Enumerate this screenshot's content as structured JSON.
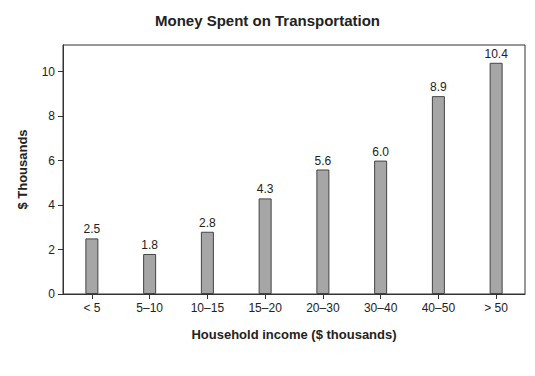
{
  "chart_data": {
    "type": "bar",
    "title": "Money Spent on Transportation",
    "x_label": "Household income ($ thousands)",
    "y_label": "$ Thousands",
    "categories": [
      "< 5",
      "5–10",
      "10–15",
      "15–20",
      "20–30",
      "30–40",
      "40–50",
      "> 50"
    ],
    "values": [
      2.5,
      1.8,
      2.8,
      4.3,
      5.6,
      6.0,
      8.9,
      10.4
    ],
    "value_labels": [
      "2.5",
      "1.8",
      "2.8",
      "4.3",
      "5.6",
      "6.0",
      "8.9",
      "10.4"
    ],
    "color": "#a6a6a6",
    "ylim": [
      0,
      11.2
    ],
    "yticks": [
      0,
      2,
      4,
      6,
      8,
      10
    ],
    "grid": false,
    "data_labels": true
  }
}
